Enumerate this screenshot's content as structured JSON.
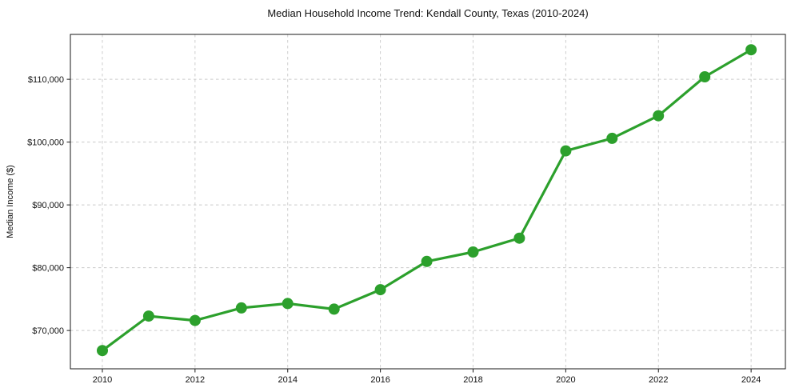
{
  "figure": {
    "background": "#ffffff",
    "text_color": "#111111",
    "grid_color": "#c9c9c9",
    "spine_color": "#1a1a1a"
  },
  "chart_data": {
    "type": "line",
    "title": "Median Household Income Trend: Kendall County, Texas (2010-2024)",
    "xlabel": "",
    "ylabel": "Median Income ($)",
    "series": [
      {
        "name": "Median Household Income",
        "x": [
          2010,
          2011,
          2012,
          2013,
          2014,
          2015,
          2016,
          2017,
          2018,
          2019,
          2020,
          2021,
          2022,
          2023,
          2024
        ],
        "values": [
          66800,
          72300,
          71600,
          73600,
          74300,
          73400,
          76500,
          81000,
          82500,
          84700,
          98600,
          100600,
          104200,
          110400,
          114700
        ],
        "line_color": "#2ca02c",
        "marker": "circle",
        "marker_size": 7,
        "line_width": 3.2
      }
    ],
    "xticks": [
      2010,
      2012,
      2014,
      2016,
      2018,
      2020,
      2022,
      2024
    ],
    "xtick_labels": [
      "2010",
      "2012",
      "2014",
      "2016",
      "2018",
      "2020",
      "2022",
      "2024"
    ],
    "yticks": [
      70000,
      80000,
      90000,
      100000,
      110000
    ],
    "ytick_labels": [
      "$70,000",
      "$80,000",
      "$90,000",
      "$100,000",
      "$110,000"
    ],
    "xlim": [
      2009.31,
      2024.74
    ],
    "ylim": [
      63900,
      117150
    ],
    "grid": true,
    "grid_style": "dashed",
    "legend": false
  }
}
